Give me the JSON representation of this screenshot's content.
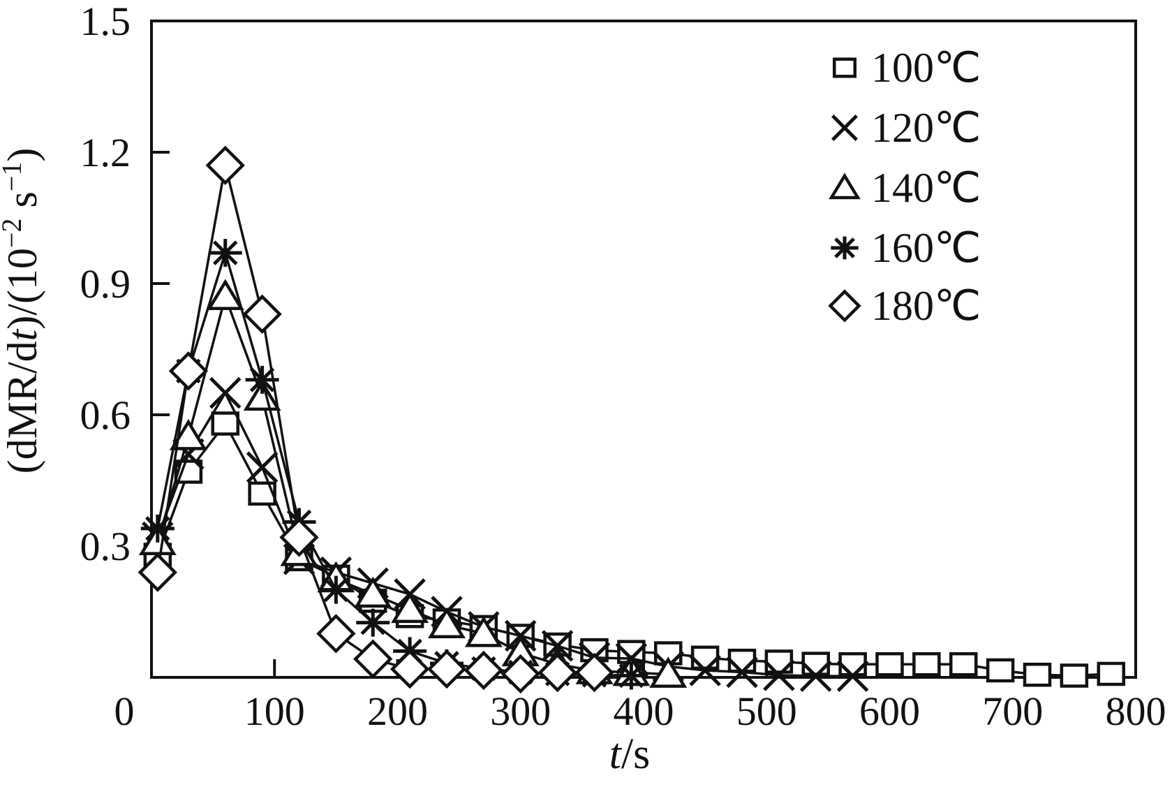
{
  "figure": {
    "background": "#ffffff",
    "ink_color": "#111111",
    "kind": "drying-rate-curves"
  },
  "chart_data": {
    "type": "line",
    "title": "",
    "xlabel": "t/s",
    "xlabel_parts": [
      {
        "t": "t",
        "i": true
      },
      {
        "t": "/s"
      }
    ],
    "ylabel": "(dMR/dt)/(10⁻² s⁻¹)",
    "ylabel_parts": [
      {
        "t": "(dMR/d"
      },
      {
        "t": "t",
        "i": true
      },
      {
        "t": ")/(10"
      },
      {
        "t": "−2",
        "sup": true
      },
      {
        "t": " s"
      },
      {
        "t": "−1",
        "sup": true
      },
      {
        "t": ")"
      }
    ],
    "xlim": [
      0,
      800
    ],
    "ylim": [
      0,
      1.5
    ],
    "x_ticks": [
      0,
      100,
      200,
      300,
      400,
      500,
      600,
      700,
      800
    ],
    "x_tick_labels": [
      "0",
      "100",
      "200",
      "300",
      "400",
      "500",
      "600",
      "700",
      "800"
    ],
    "y_ticks": [
      0.3,
      0.6,
      0.9,
      1.2,
      1.5
    ],
    "y_tick_labels": [
      "0.3",
      "0.6",
      "0.9",
      "1.2",
      "1.5"
    ],
    "origin_label": "0",
    "grid": false,
    "legend_position": "top-right",
    "series": [
      {
        "name": "100℃",
        "marker": "square",
        "x": [
          5,
          30,
          60,
          90,
          120,
          150,
          180,
          210,
          240,
          270,
          300,
          330,
          360,
          390,
          420,
          450,
          480,
          510,
          540,
          570,
          600,
          630,
          660,
          690,
          720,
          750,
          780
        ],
        "y": [
          0.28,
          0.47,
          0.58,
          0.42,
          0.27,
          0.23,
          0.175,
          0.14,
          0.13,
          0.115,
          0.095,
          0.075,
          0.062,
          0.058,
          0.055,
          0.045,
          0.038,
          0.036,
          0.031,
          0.03,
          0.03,
          0.03,
          0.03,
          0.016,
          0.006,
          0.004,
          0.008
        ]
      },
      {
        "name": "120℃",
        "marker": "x",
        "x": [
          5,
          30,
          60,
          90,
          120,
          150,
          180,
          210,
          240,
          270,
          300,
          330,
          360,
          390,
          420,
          450,
          480,
          510,
          540,
          570
        ],
        "y": [
          0.32,
          0.51,
          0.65,
          0.48,
          0.27,
          0.24,
          0.215,
          0.19,
          0.15,
          0.115,
          0.095,
          0.072,
          0.045,
          0.043,
          0.025,
          0.016,
          0.012,
          0.005,
          0.003,
          0.003
        ]
      },
      {
        "name": "140℃",
        "marker": "triangle",
        "x": [
          5,
          30,
          60,
          90,
          120,
          150,
          180,
          210,
          240,
          270,
          300,
          330,
          360,
          390,
          420
        ],
        "y": [
          0.31,
          0.55,
          0.87,
          0.64,
          0.285,
          0.225,
          0.19,
          0.155,
          0.12,
          0.1,
          0.056,
          0.03,
          0.015,
          0.011,
          0.007
        ]
      },
      {
        "name": "160℃",
        "marker": "star",
        "x": [
          5,
          30,
          60,
          90,
          120,
          150,
          180,
          210,
          240,
          270,
          300,
          330,
          360,
          390
        ],
        "y": [
          0.34,
          0.7,
          0.97,
          0.68,
          0.355,
          0.2,
          0.125,
          0.06,
          0.032,
          0.02,
          0.012,
          0.008,
          0.005,
          0.004
        ]
      },
      {
        "name": "180℃",
        "marker": "diamond",
        "x": [
          5,
          30,
          60,
          90,
          120,
          150,
          180,
          210,
          240,
          270,
          300,
          330,
          360
        ],
        "y": [
          0.24,
          0.7,
          1.17,
          0.83,
          0.32,
          0.1,
          0.042,
          0.019,
          0.019,
          0.016,
          0.008,
          0.011,
          0.011
        ]
      }
    ]
  }
}
